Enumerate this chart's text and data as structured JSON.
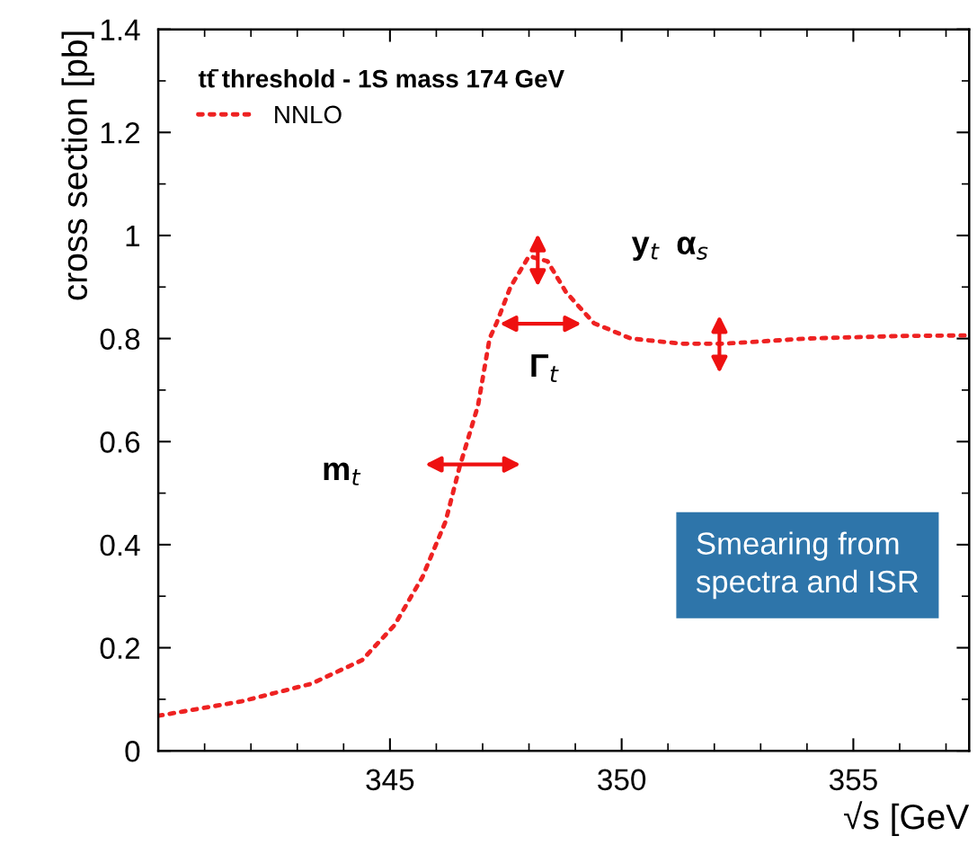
{
  "chart_data": {
    "type": "line",
    "xlabel": "√s [GeV",
    "ylabel": "cross section [pb]",
    "legend_title": "tt̄ threshold - 1S mass 174 GeV",
    "legend": "top left",
    "x": [
      340.0,
      341.8,
      343.3,
      344.4,
      345.1,
      345.7,
      346.2,
      346.5,
      346.9,
      347.15,
      347.3,
      347.6,
      348.0,
      348.4,
      348.8,
      349.4,
      350.2,
      351.3,
      352.2,
      354.0,
      356.0,
      357.4
    ],
    "series": [
      {
        "name": "NNLO",
        "color": "#ee2222",
        "line_style": "dotted",
        "marker": "none",
        "values": [
          0.068,
          0.096,
          0.13,
          0.176,
          0.244,
          0.337,
          0.445,
          0.55,
          0.67,
          0.8,
          0.83,
          0.9,
          0.96,
          0.95,
          0.89,
          0.83,
          0.8,
          0.79,
          0.79,
          0.8,
          0.805,
          0.806
        ]
      }
    ],
    "xlim": [
      340,
      357.5
    ],
    "xticks": [
      345,
      350,
      355
    ],
    "ylim": [
      0,
      1.4
    ],
    "yticks": [
      0,
      0.2,
      0.4,
      0.6,
      0.8,
      1,
      1.2,
      1.4
    ],
    "grid": false,
    "annotations": [
      "m$_{t}$",
      "Γ$_{t}$",
      "y$_{t}$",
      "α$_{s}$",
      "Smearing from\nspectra and ISR"
    ]
  }
}
